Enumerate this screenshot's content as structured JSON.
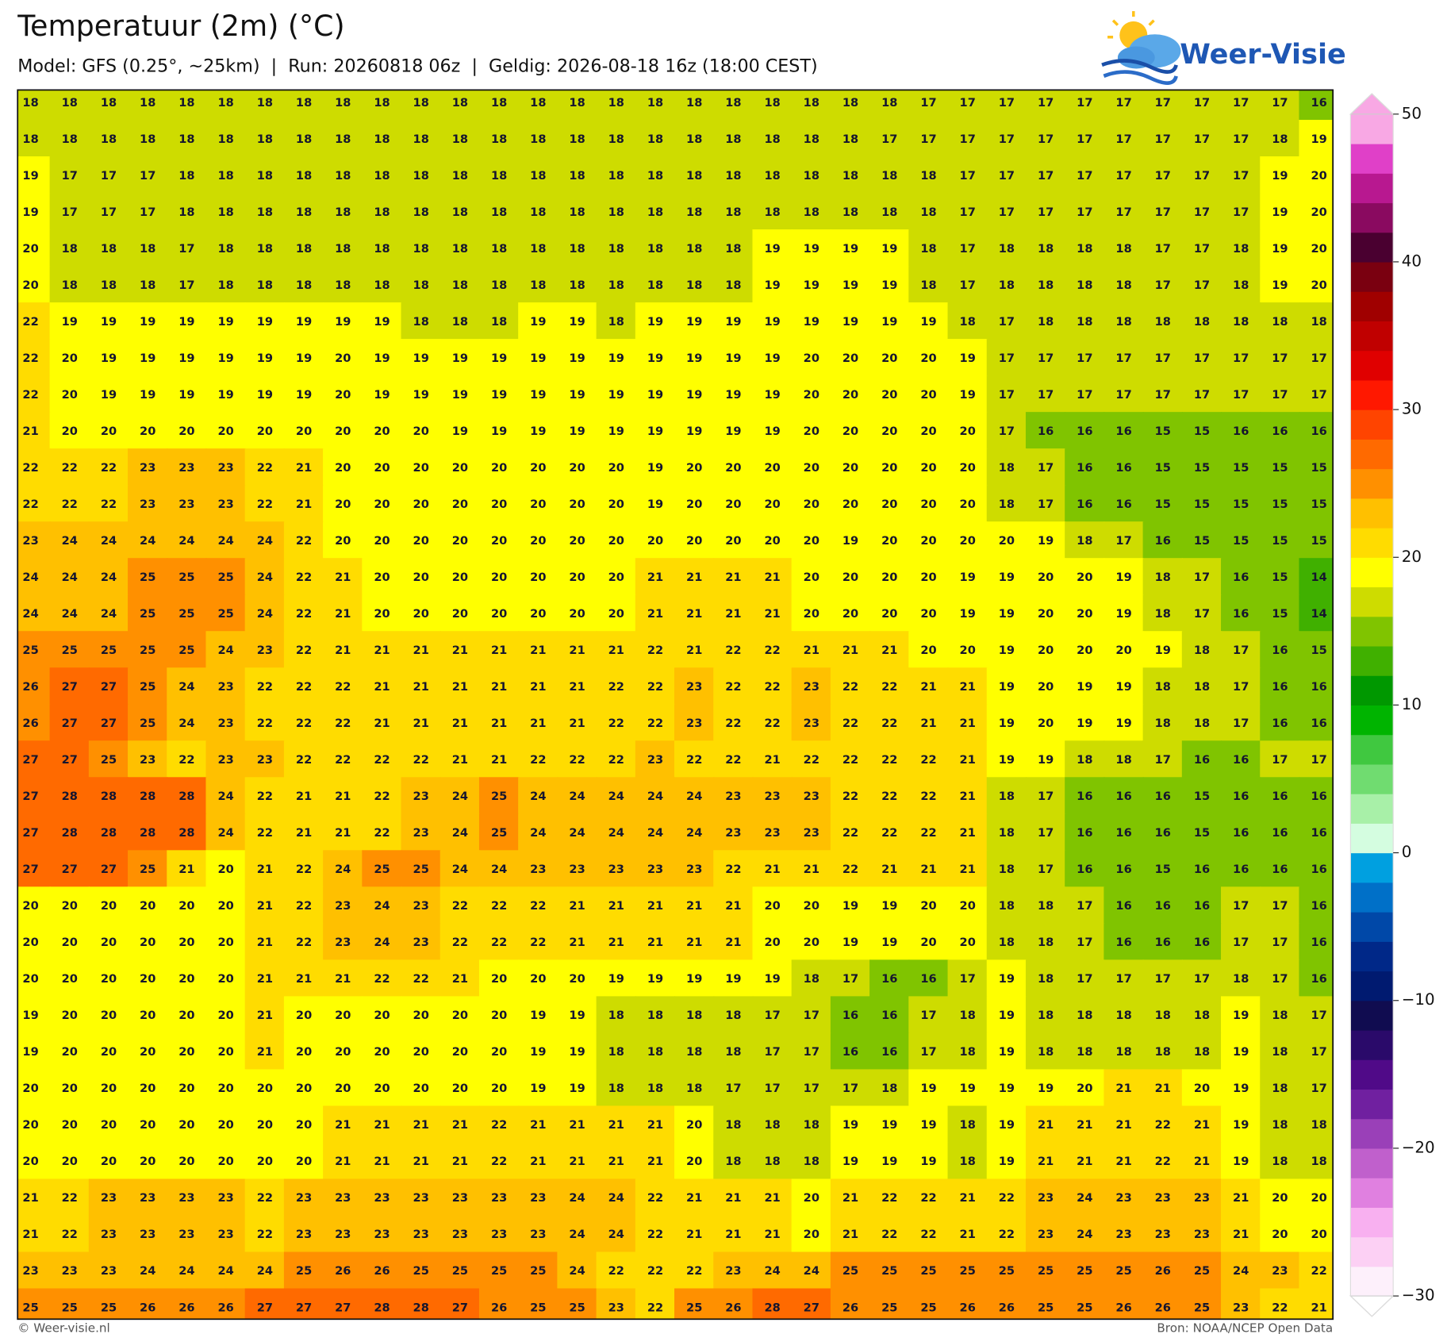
{
  "header": {
    "title": "Temperatuur (2m) (°C)",
    "subtitle": "Model: GFS (0.25°, ~25km)  |  Run: 20260818 06z  |  Geldig: 2026-08-18 16z (18:00 CEST)"
  },
  "logo": "Weer-Visie",
  "map": {
    "values": [
      [
        18,
        18,
        18,
        18,
        18,
        18,
        18,
        18,
        18,
        18,
        18,
        18,
        18,
        18,
        18,
        18,
        18,
        18,
        18,
        18,
        18,
        18,
        18,
        17,
        17,
        17,
        17,
        17,
        17,
        17,
        17,
        17,
        17,
        16
      ],
      [
        18,
        18,
        18,
        18,
        18,
        18,
        18,
        18,
        18,
        18,
        18,
        18,
        18,
        18,
        18,
        18,
        18,
        18,
        18,
        18,
        18,
        18,
        17,
        17,
        17,
        17,
        17,
        17,
        17,
        17,
        17,
        17,
        18,
        19
      ],
      [
        19,
        17,
        17,
        17,
        18,
        18,
        18,
        18,
        18,
        18,
        18,
        18,
        18,
        18,
        18,
        18,
        18,
        18,
        18,
        18,
        18,
        18,
        18,
        18,
        17,
        17,
        17,
        17,
        17,
        17,
        17,
        17,
        19,
        20
      ],
      [
        19,
        17,
        17,
        17,
        18,
        18,
        18,
        18,
        18,
        18,
        18,
        18,
        18,
        18,
        18,
        18,
        18,
        18,
        18,
        18,
        18,
        18,
        18,
        18,
        17,
        17,
        17,
        17,
        17,
        17,
        17,
        17,
        19,
        20
      ],
      [
        20,
        18,
        18,
        18,
        17,
        18,
        18,
        18,
        18,
        18,
        18,
        18,
        18,
        18,
        18,
        18,
        18,
        18,
        18,
        19,
        19,
        19,
        19,
        18,
        17,
        18,
        18,
        18,
        18,
        17,
        17,
        18,
        19,
        20
      ],
      [
        20,
        18,
        18,
        18,
        17,
        18,
        18,
        18,
        18,
        18,
        18,
        18,
        18,
        18,
        18,
        18,
        18,
        18,
        18,
        19,
        19,
        19,
        19,
        18,
        17,
        18,
        18,
        18,
        18,
        17,
        17,
        18,
        19,
        20
      ],
      [
        22,
        19,
        19,
        19,
        19,
        19,
        19,
        19,
        19,
        19,
        18,
        18,
        18,
        19,
        19,
        18,
        19,
        19,
        19,
        19,
        19,
        19,
        19,
        19,
        18,
        17,
        18,
        18,
        18,
        18,
        18,
        18,
        18,
        18
      ],
      [
        22,
        20,
        19,
        19,
        19,
        19,
        19,
        19,
        20,
        19,
        19,
        19,
        19,
        19,
        19,
        19,
        19,
        19,
        19,
        19,
        20,
        20,
        20,
        20,
        19,
        17,
        17,
        17,
        17,
        17,
        17,
        17,
        17,
        17
      ],
      [
        22,
        20,
        19,
        19,
        19,
        19,
        19,
        19,
        20,
        19,
        19,
        19,
        19,
        19,
        19,
        19,
        19,
        19,
        19,
        19,
        20,
        20,
        20,
        20,
        19,
        17,
        17,
        17,
        17,
        17,
        17,
        17,
        17,
        17
      ],
      [
        21,
        20,
        20,
        20,
        20,
        20,
        20,
        20,
        20,
        20,
        20,
        19,
        19,
        19,
        19,
        19,
        19,
        19,
        19,
        19,
        20,
        20,
        20,
        20,
        20,
        17,
        16,
        16,
        16,
        15,
        15,
        16,
        16,
        16
      ],
      [
        22,
        22,
        22,
        23,
        23,
        23,
        22,
        21,
        20,
        20,
        20,
        20,
        20,
        20,
        20,
        20,
        19,
        20,
        20,
        20,
        20,
        20,
        20,
        20,
        20,
        18,
        17,
        16,
        16,
        15,
        15,
        15,
        15,
        15
      ],
      [
        22,
        22,
        22,
        23,
        23,
        23,
        22,
        21,
        20,
        20,
        20,
        20,
        20,
        20,
        20,
        20,
        19,
        20,
        20,
        20,
        20,
        20,
        20,
        20,
        20,
        18,
        17,
        16,
        16,
        15,
        15,
        15,
        15,
        15
      ],
      [
        23,
        24,
        24,
        24,
        24,
        24,
        24,
        22,
        20,
        20,
        20,
        20,
        20,
        20,
        20,
        20,
        20,
        20,
        20,
        20,
        20,
        19,
        20,
        20,
        20,
        20,
        19,
        18,
        17,
        16,
        15,
        15,
        15,
        15
      ],
      [
        24,
        24,
        24,
        25,
        25,
        25,
        24,
        22,
        21,
        20,
        20,
        20,
        20,
        20,
        20,
        20,
        21,
        21,
        21,
        21,
        20,
        20,
        20,
        20,
        19,
        19,
        20,
        20,
        19,
        18,
        17,
        16,
        15,
        14
      ],
      [
        24,
        24,
        24,
        25,
        25,
        25,
        24,
        22,
        21,
        20,
        20,
        20,
        20,
        20,
        20,
        20,
        21,
        21,
        21,
        21,
        20,
        20,
        20,
        20,
        19,
        19,
        20,
        20,
        19,
        18,
        17,
        16,
        15,
        14
      ],
      [
        25,
        25,
        25,
        25,
        25,
        24,
        23,
        22,
        21,
        21,
        21,
        21,
        21,
        21,
        21,
        21,
        22,
        21,
        22,
        22,
        21,
        21,
        21,
        20,
        20,
        19,
        20,
        20,
        20,
        19,
        18,
        17,
        16,
        15
      ],
      [
        26,
        27,
        27,
        25,
        24,
        23,
        22,
        22,
        22,
        21,
        21,
        21,
        21,
        21,
        21,
        22,
        22,
        23,
        22,
        22,
        23,
        22,
        22,
        21,
        21,
        19,
        20,
        19,
        19,
        18,
        18,
        17,
        16,
        16
      ],
      [
        26,
        27,
        27,
        25,
        24,
        23,
        22,
        22,
        22,
        21,
        21,
        21,
        21,
        21,
        21,
        22,
        22,
        23,
        22,
        22,
        23,
        22,
        22,
        21,
        21,
        19,
        20,
        19,
        19,
        18,
        18,
        17,
        16,
        16
      ],
      [
        27,
        27,
        25,
        23,
        22,
        23,
        23,
        22,
        22,
        22,
        22,
        21,
        21,
        22,
        22,
        22,
        23,
        22,
        22,
        21,
        22,
        22,
        22,
        22,
        21,
        19,
        19,
        18,
        18,
        17,
        16,
        16,
        17,
        17
      ],
      [
        27,
        28,
        28,
        28,
        28,
        24,
        22,
        21,
        21,
        22,
        23,
        24,
        25,
        24,
        24,
        24,
        24,
        24,
        23,
        23,
        23,
        22,
        22,
        22,
        21,
        18,
        17,
        16,
        16,
        16,
        15,
        16,
        16,
        16
      ],
      [
        27,
        28,
        28,
        28,
        28,
        24,
        22,
        21,
        21,
        22,
        23,
        24,
        25,
        24,
        24,
        24,
        24,
        24,
        23,
        23,
        23,
        22,
        22,
        22,
        21,
        18,
        17,
        16,
        16,
        16,
        15,
        16,
        16,
        16
      ],
      [
        27,
        27,
        27,
        25,
        21,
        20,
        21,
        22,
        24,
        25,
        25,
        24,
        24,
        23,
        23,
        23,
        23,
        23,
        22,
        21,
        21,
        22,
        21,
        21,
        21,
        18,
        17,
        16,
        16,
        15,
        16,
        16,
        16,
        16
      ],
      [
        20,
        20,
        20,
        20,
        20,
        20,
        21,
        22,
        23,
        24,
        23,
        22,
        22,
        22,
        21,
        21,
        21,
        21,
        21,
        20,
        20,
        19,
        19,
        20,
        20,
        18,
        18,
        17,
        16,
        16,
        16,
        17,
        17,
        16
      ],
      [
        20,
        20,
        20,
        20,
        20,
        20,
        21,
        22,
        23,
        24,
        23,
        22,
        22,
        22,
        21,
        21,
        21,
        21,
        21,
        20,
        20,
        19,
        19,
        20,
        20,
        18,
        18,
        17,
        16,
        16,
        16,
        17,
        17,
        16
      ],
      [
        20,
        20,
        20,
        20,
        20,
        20,
        21,
        21,
        21,
        22,
        22,
        21,
        20,
        20,
        20,
        19,
        19,
        19,
        19,
        19,
        18,
        17,
        16,
        16,
        17,
        19,
        18,
        17,
        17,
        17,
        17,
        18,
        17,
        16
      ],
      [
        19,
        20,
        20,
        20,
        20,
        20,
        21,
        20,
        20,
        20,
        20,
        20,
        20,
        19,
        19,
        18,
        18,
        18,
        18,
        17,
        17,
        16,
        16,
        17,
        18,
        19,
        18,
        18,
        18,
        18,
        18,
        19,
        18,
        17
      ],
      [
        19,
        20,
        20,
        20,
        20,
        20,
        21,
        20,
        20,
        20,
        20,
        20,
        20,
        19,
        19,
        18,
        18,
        18,
        18,
        17,
        17,
        16,
        16,
        17,
        18,
        19,
        18,
        18,
        18,
        18,
        18,
        19,
        18,
        17
      ],
      [
        20,
        20,
        20,
        20,
        20,
        20,
        20,
        20,
        20,
        20,
        20,
        20,
        20,
        19,
        19,
        18,
        18,
        18,
        17,
        17,
        17,
        17,
        18,
        19,
        19,
        19,
        19,
        20,
        21,
        21,
        20,
        19,
        18,
        17
      ],
      [
        20,
        20,
        20,
        20,
        20,
        20,
        20,
        20,
        21,
        21,
        21,
        21,
        22,
        21,
        21,
        21,
        21,
        20,
        18,
        18,
        18,
        19,
        19,
        19,
        18,
        19,
        21,
        21,
        21,
        22,
        21,
        19,
        18,
        18
      ],
      [
        20,
        20,
        20,
        20,
        20,
        20,
        20,
        20,
        21,
        21,
        21,
        21,
        22,
        21,
        21,
        21,
        21,
        20,
        18,
        18,
        18,
        19,
        19,
        19,
        18,
        19,
        21,
        21,
        21,
        22,
        21,
        19,
        18,
        18
      ],
      [
        21,
        22,
        23,
        23,
        23,
        23,
        22,
        23,
        23,
        23,
        23,
        23,
        23,
        23,
        24,
        24,
        22,
        21,
        21,
        21,
        20,
        21,
        22,
        22,
        21,
        22,
        23,
        24,
        23,
        23,
        23,
        21,
        20,
        20
      ],
      [
        21,
        22,
        23,
        23,
        23,
        23,
        22,
        23,
        23,
        23,
        23,
        23,
        23,
        23,
        24,
        24,
        22,
        21,
        21,
        21,
        20,
        21,
        22,
        22,
        21,
        22,
        23,
        24,
        23,
        23,
        23,
        21,
        20,
        20
      ],
      [
        23,
        23,
        23,
        24,
        24,
        24,
        24,
        25,
        26,
        26,
        25,
        25,
        25,
        25,
        24,
        22,
        22,
        22,
        23,
        24,
        24,
        25,
        25,
        25,
        25,
        25,
        25,
        25,
        25,
        26,
        25,
        24,
        23,
        22
      ],
      [
        25,
        25,
        25,
        26,
        26,
        26,
        27,
        27,
        27,
        28,
        28,
        27,
        26,
        25,
        25,
        23,
        22,
        25,
        26,
        28,
        27,
        26,
        25,
        25,
        26,
        26,
        25,
        25,
        26,
        26,
        25,
        23,
        22,
        21
      ]
    ]
  },
  "colorbar": {
    "range": [
      -30,
      50
    ],
    "ticks": [
      50,
      40,
      30,
      20,
      10,
      0,
      {
        "value": -10,
        "label": "−10"
      },
      {
        "value": -20,
        "label": "−20"
      },
      {
        "value": -30,
        "label": "−30"
      }
    ],
    "colors": [
      "#fdf0fb",
      "#fcd0f4",
      "#f8b0f0",
      "#e080e0",
      "#c060cc",
      "#9a40b8",
      "#7020a0",
      "#500a88",
      "#2a0a6a",
      "#100c50",
      "#001a70",
      "#002888",
      "#0048a8",
      "#0070c8",
      "#00a0e0",
      "#d4fde0",
      "#a8f0a8",
      "#70dc70",
      "#40c840",
      "#00b400",
      "#009800",
      "#40b000",
      "#80c400",
      "#cedc00",
      "#ffff00",
      "#ffdc00",
      "#ffc000",
      "#ff9000",
      "#ff6a00",
      "#ff4400",
      "#ff1800",
      "#e00000",
      "#c00000",
      "#a00000",
      "#7a0010",
      "#4a0030",
      "#8a0a60",
      "#b81890",
      "#e040c8",
      "#f8a8e4"
    ]
  },
  "footer": {
    "left": "© Weer-visie.nl",
    "right": "Bron: NOAA/NCEP Open Data"
  }
}
